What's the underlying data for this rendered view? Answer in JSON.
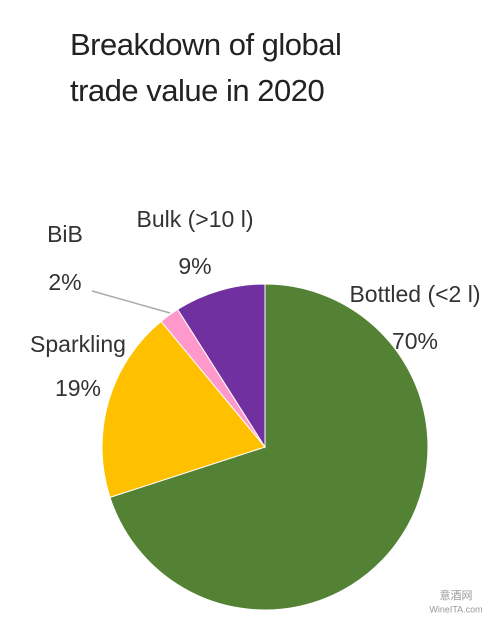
{
  "chart_data": {
    "type": "pie",
    "title": "Breakdown of global trade value in 2020",
    "categories": [
      "Bottled (<2 l)",
      "Sparkling",
      "BiB",
      "Bulk (>10 l)"
    ],
    "values": [
      70,
      19,
      2,
      9
    ],
    "value_labels": [
      "70%",
      "19%",
      "2%",
      "9%"
    ],
    "colors": [
      "#548235",
      "#ffc000",
      "#ff99cc",
      "#7030a0"
    ],
    "annotations": [
      "意酒网",
      "WineITA.com"
    ]
  }
}
